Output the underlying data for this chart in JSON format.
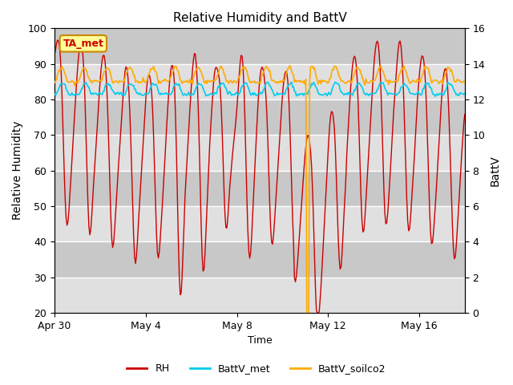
{
  "title": "Relative Humidity and BattV",
  "xlabel": "Time",
  "ylabel_left": "Relative Humidity",
  "ylabel_right": "BattV",
  "ylim_left": [
    20,
    100
  ],
  "ylim_right": [
    0,
    16
  ],
  "xlim": [
    0,
    18
  ],
  "bg_color": "#d8d8d8",
  "fig_color": "#ffffff",
  "annotation_text": "TA_met",
  "annotation_bg": "#ffff99",
  "annotation_border": "#cc8800",
  "lines": {
    "RH": {
      "color": "#cc0000",
      "lw": 1.0
    },
    "BattV_met": {
      "color": "#00ccee",
      "lw": 1.2
    },
    "BattV_soilco2": {
      "color": "#ffaa00",
      "lw": 1.2
    }
  },
  "legend": {
    "RH": "RH",
    "BattV_met": "BattV_met",
    "BattV_soilco2": "BattV_soilco2"
  },
  "xtick_labels": [
    "Apr 30",
    "May 4",
    "May 8",
    "May 12",
    "May 16"
  ],
  "xtick_positions": [
    0,
    4,
    8,
    12,
    16
  ],
  "yticks_left": [
    20,
    30,
    40,
    50,
    60,
    70,
    80,
    90,
    100
  ],
  "yticks_right": [
    0,
    2,
    4,
    6,
    8,
    10,
    12,
    14,
    16
  ],
  "grid_color": "#c0c0c0",
  "band_color_light": "#e0e0e0",
  "band_color_dark": "#c8c8c8"
}
